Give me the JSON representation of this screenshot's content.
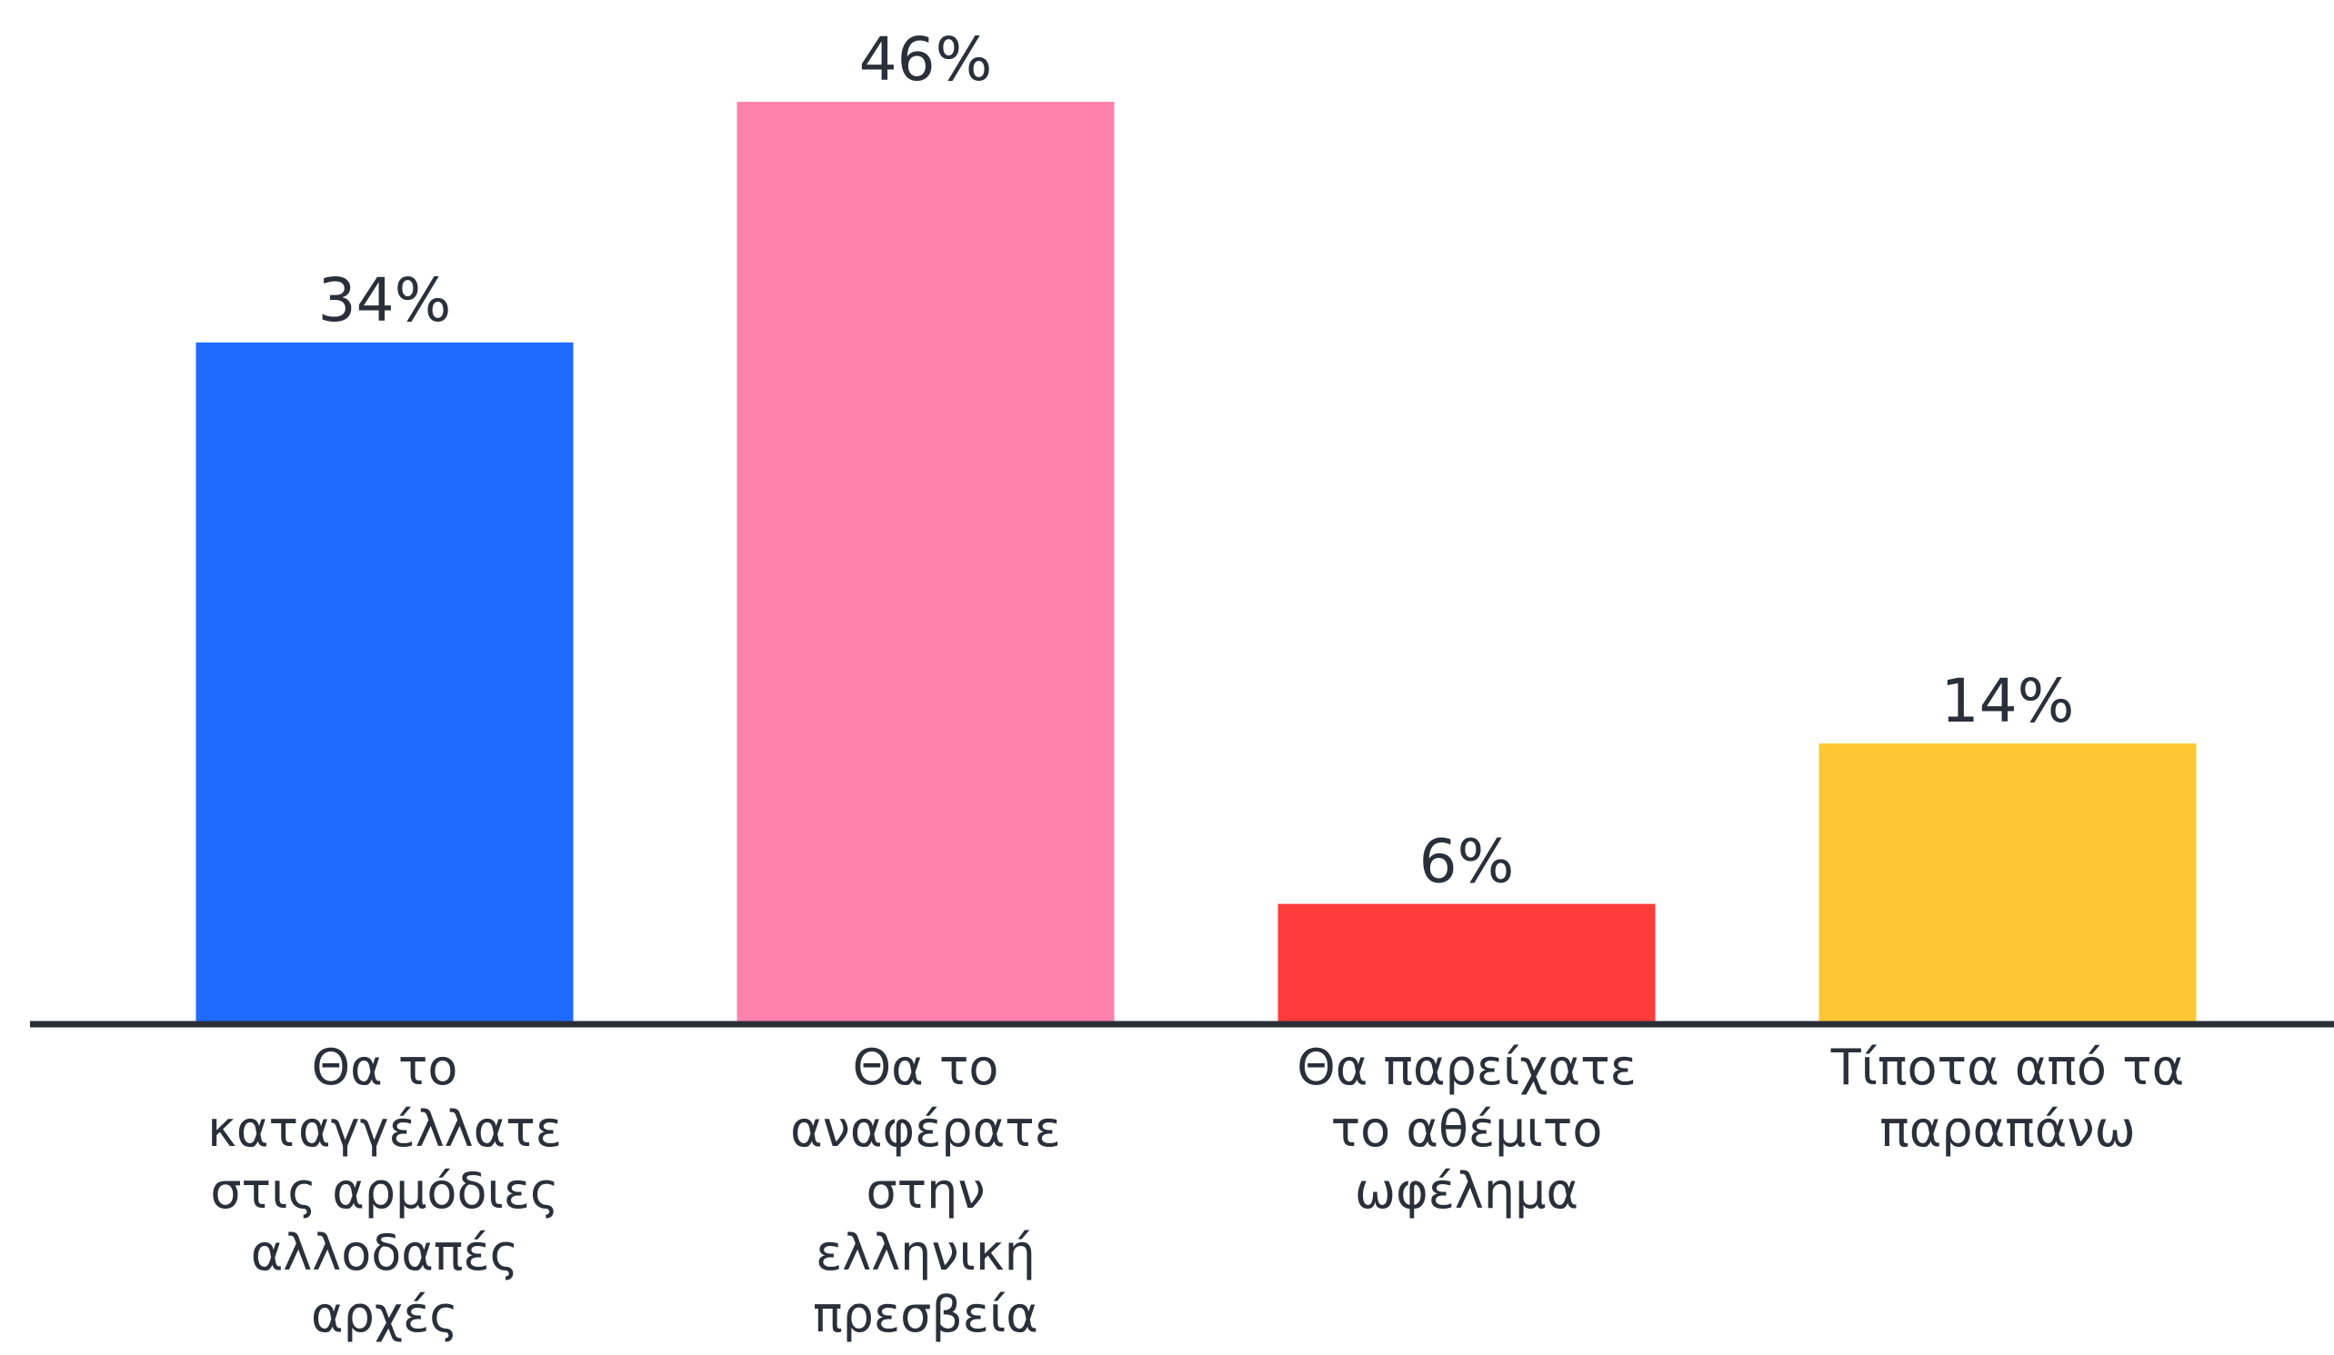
{
  "chart_data": {
    "type": "bar",
    "title": "",
    "xlabel": "",
    "ylabel": "",
    "ylim": [
      0,
      46
    ],
    "grid": false,
    "legend": "none",
    "categories": [
      "Θα το καταγγέλλατε στις αρμόδιες αλλοδαπές αρχές",
      "Θα το αναφέρατε στην ελληνική πρεσβεία",
      "Θα παρείχατε το αθέμιτο ωφέλημα",
      "Τίποτα από τα παραπάνω"
    ],
    "category_lines": [
      [
        "Θα το",
        "καταγγέλλατε",
        "στις αρμόδιες",
        "αλλοδαπές",
        "αρχές"
      ],
      [
        "Θα το",
        "αναφέρατε",
        "στην",
        "ελληνική",
        "πρεσβεία"
      ],
      [
        "Θα παρείχατε",
        "το αθέμιτο",
        "ωφέλημα"
      ],
      [
        "Τίποτα από τα",
        "παραπάνω"
      ]
    ],
    "values": [
      34,
      46,
      6,
      14
    ],
    "value_labels": [
      "34%",
      "46%",
      "6%",
      "14%"
    ],
    "colors": [
      "#1f6bff",
      "#ff82ad",
      "#ff3b3b",
      "#ffc733"
    ],
    "axis_color": "#2b2f3a",
    "text_color": "#2b2f3a"
  }
}
